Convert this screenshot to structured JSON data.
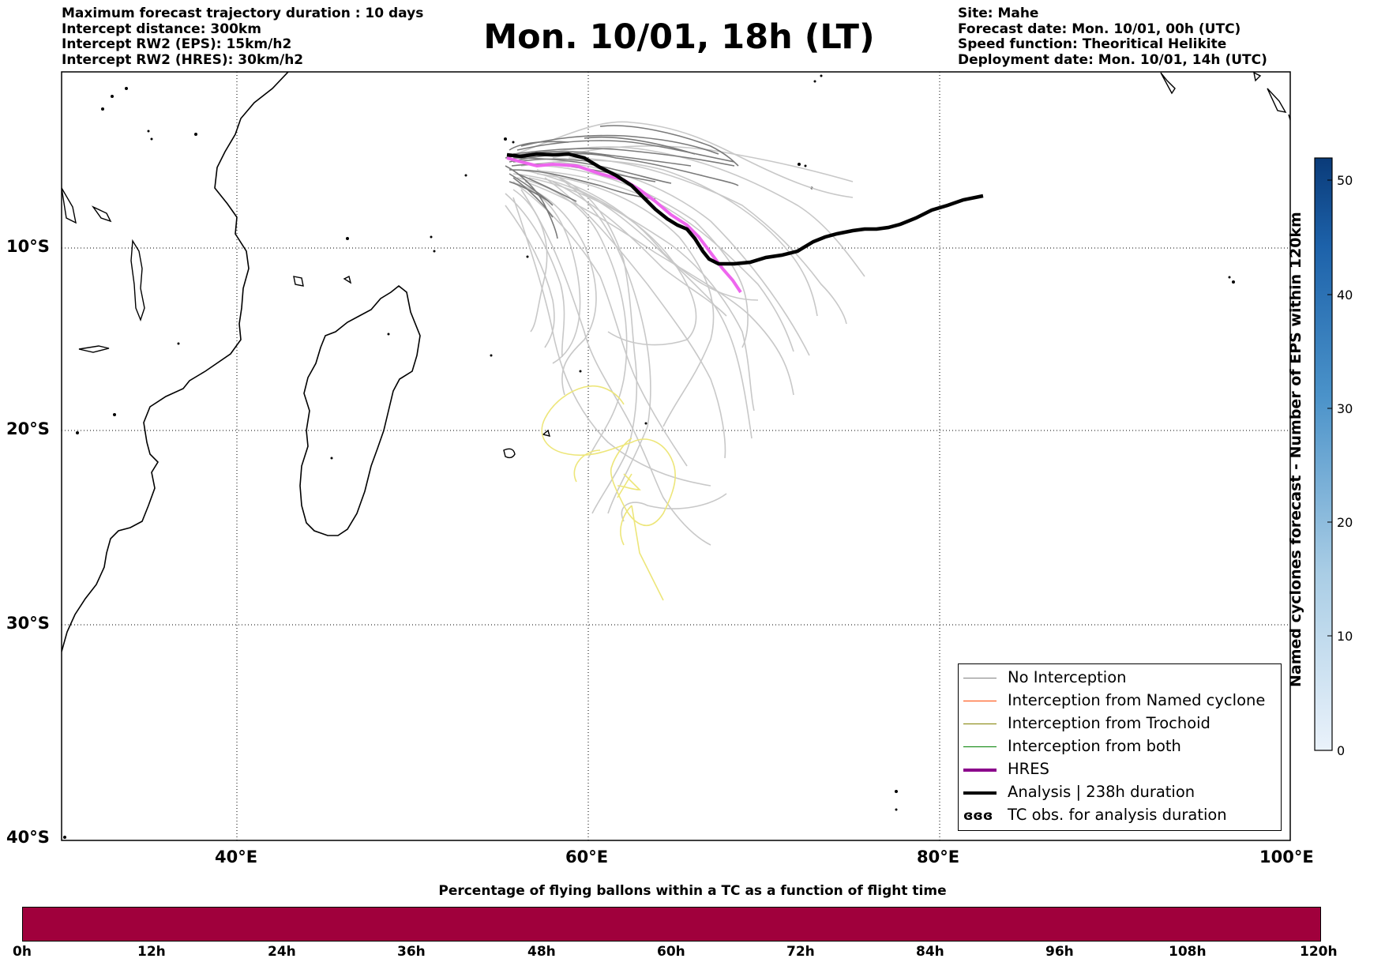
{
  "header_left": [
    "Maximum forecast trajectory duration : 10 days",
    "Intercept distance: 300km",
    "Intercept RW2 (EPS):  15km/h2",
    "Intercept RW2 (HRES): 30km/h2"
  ],
  "header_right": [
    "Site: Mahe",
    "Forecast date: Mon. 10/01, 00h (UTC)",
    "Speed function: Theoritical Helikite",
    "Deployment date: Mon. 10/01, 14h (UTC)"
  ],
  "title": "Mon. 10/01, 18h (LT)",
  "map": {
    "lon_ticks": [
      "40°E",
      "60°E",
      "80°E",
      "100°E"
    ],
    "lat_ticks": [
      "10°S",
      "20°S",
      "30°S",
      "40°S"
    ]
  },
  "colorbar": {
    "title": "Named cyclones forecast - Number of EPS within 120km",
    "ticks": [
      "0",
      "10",
      "20",
      "30",
      "40",
      "50"
    ],
    "color_low": "#eaf2fb",
    "color_high": "#0a3b79"
  },
  "legend": {
    "items": [
      {
        "label": "No Interception",
        "color": "#808080"
      },
      {
        "label": "Interception from Named cyclone",
        "color": "#ff4500"
      },
      {
        "label": "Interception from Trochoid",
        "color": "#808000"
      },
      {
        "label": "Interception from both",
        "color": "#008000"
      },
      {
        "label": "HRES",
        "color": "#8b008b"
      },
      {
        "label": "Analysis | 238h duration",
        "color": "#000000"
      },
      {
        "label": "TC obs. for analysis duration",
        "color": "#000000",
        "symbol": "ɞɞɞ"
      }
    ]
  },
  "flight_bar": {
    "title": "Percentage of flying ballons within a TC as a function of flight time",
    "ticks": [
      "0h",
      "12h",
      "24h",
      "36h",
      "48h",
      "60h",
      "72h",
      "84h",
      "96h",
      "108h",
      "120h"
    ],
    "color": "#a0003c"
  },
  "colors": {
    "eps_track": "#7a7a7a",
    "eps_track_light": "#c8c8c8",
    "hres_track": "#ee66ee",
    "analysis_track": "#000000",
    "yellow_track": "#ede67a"
  }
}
